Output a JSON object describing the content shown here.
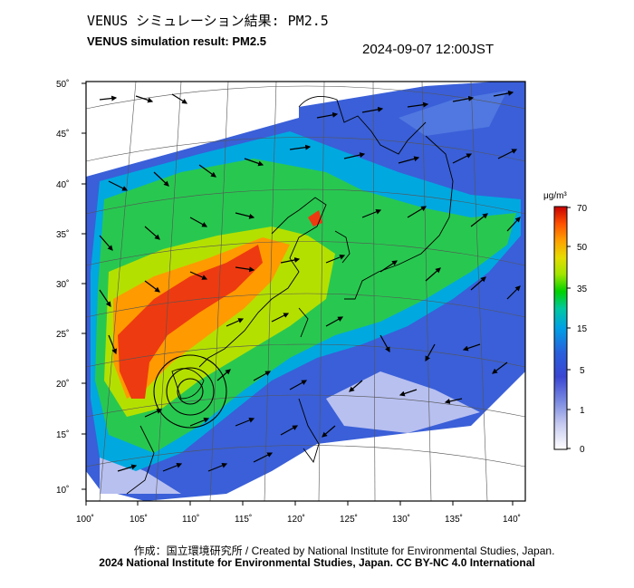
{
  "header": {
    "title_jp": "VENUS シミュレーション結果: PM2.5",
    "title_en": "VENUS simulation result: PM2.5",
    "datetime": "2024-09-07 12:00JST"
  },
  "map": {
    "lon_ticks": [
      "100˚",
      "105˚",
      "110˚",
      "115˚",
      "120˚",
      "125˚",
      "130˚",
      "135˚",
      "140˚"
    ],
    "lat_ticks": [
      "50˚",
      "45˚",
      "40˚",
      "35˚",
      "30˚",
      "25˚",
      "20˚",
      "15˚",
      "10˚"
    ],
    "extent": {
      "lon": [
        100,
        142
      ],
      "lat": [
        9,
        51
      ]
    },
    "variable": "PM2.5",
    "overlay": "wind-vector-arrows"
  },
  "colorbar": {
    "unit": "μg/m³",
    "labels": [
      "70",
      "50",
      "35",
      "15",
      "5",
      "1",
      "0"
    ],
    "colors": [
      "#c80000",
      "#ff5000",
      "#ffa000",
      "#e6dc00",
      "#a0e600",
      "#00d200",
      "#00c8a0",
      "#00a0e6",
      "#2860dc",
      "#3a46d2",
      "#7888e0",
      "#c8ccf0",
      "#ffffff"
    ]
  },
  "footer": {
    "credit_jp_en": "作成：国立環境研究所 / Created by National Institute for Environmental Studies, Japan.",
    "copyright": "2024 National Institute for Environmental Studies, Japan. CC BY-NC 4.0 International"
  }
}
